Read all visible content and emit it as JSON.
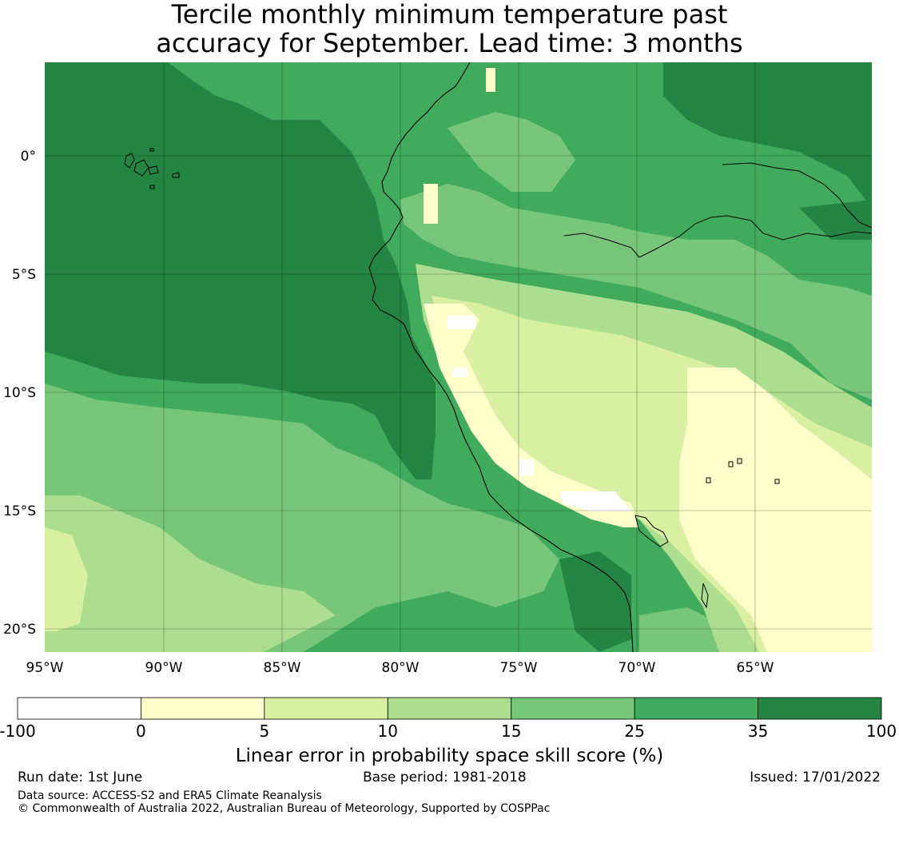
{
  "title": {
    "line1": "Tercile monthly minimum temperature past",
    "line2": "accuracy for September. Lead time: 3 months"
  },
  "map": {
    "x_ticks": [
      "95°W",
      "90°W",
      "85°W",
      "80°W",
      "75°W",
      "70°W",
      "65°W"
    ],
    "y_ticks": [
      "0°",
      "5°S",
      "10°S",
      "15°S",
      "20°S"
    ]
  },
  "colorbar": {
    "labels": [
      "-100",
      "0",
      "5",
      "10",
      "15",
      "25",
      "35",
      "100"
    ],
    "colors": [
      "#ffffff",
      "#ffffcc",
      "#d9f0a3",
      "#addd8e",
      "#78c679",
      "#41ab5d",
      "#238443"
    ],
    "title": "Linear error in probability space skill score (%)"
  },
  "footer": {
    "run_date": "Run date: 1st June",
    "base_period": "Base period: 1981-2018",
    "issued": "Issued: 17/01/2022",
    "data_source": "Data source: ACCESS-S2 and ERA5 Climate Reanalysis",
    "copyright": "© Commonwealth of Australia 2022, Australian Bureau of Meteorology, Supported by COSPPac"
  }
}
